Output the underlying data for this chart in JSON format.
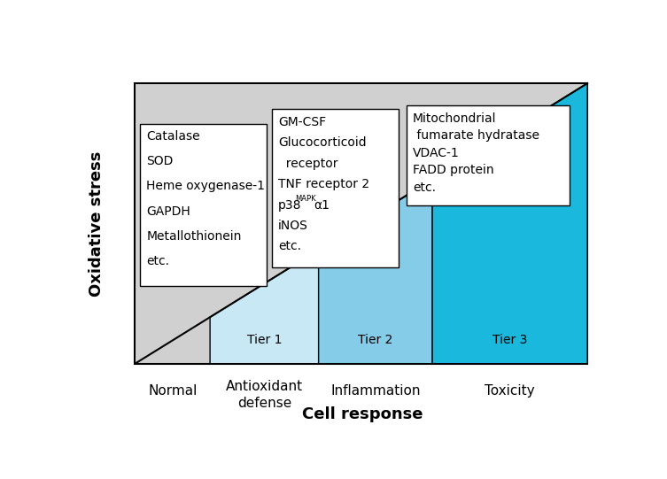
{
  "xlabel": "Cell response",
  "ylabel": "Oxidative stress",
  "bg_color": "#d0d0d0",
  "tier1_color": "#c8e8f5",
  "tier2_color": "#85cce8",
  "tier3_color": "#1ab8dc",
  "tier_labels": [
    "Tier 1",
    "Tier 2",
    "Tier 3"
  ],
  "x_labels": [
    "Normal",
    "Antioxidant\ndefense",
    "Inflammation",
    "Toxicity"
  ],
  "box1_lines": [
    "Catalase",
    "SOD",
    "Heme oxygenase-1",
    "GAPDH",
    "Metallothionein",
    "etc."
  ],
  "box2_lines": [
    "GM-CSF",
    "Glucocorticoid",
    "  receptor",
    "TNF receptor 2",
    "p38",
    "iNOS",
    "etc."
  ],
  "box3_lines": [
    "Mitochondrial",
    " fumarate hydratase",
    "VDAC-1",
    "FADD protein",
    "etc."
  ],
  "font_size_box": 10,
  "font_size_tier": 10,
  "font_size_xlabels": 11,
  "font_size_axis": 13
}
